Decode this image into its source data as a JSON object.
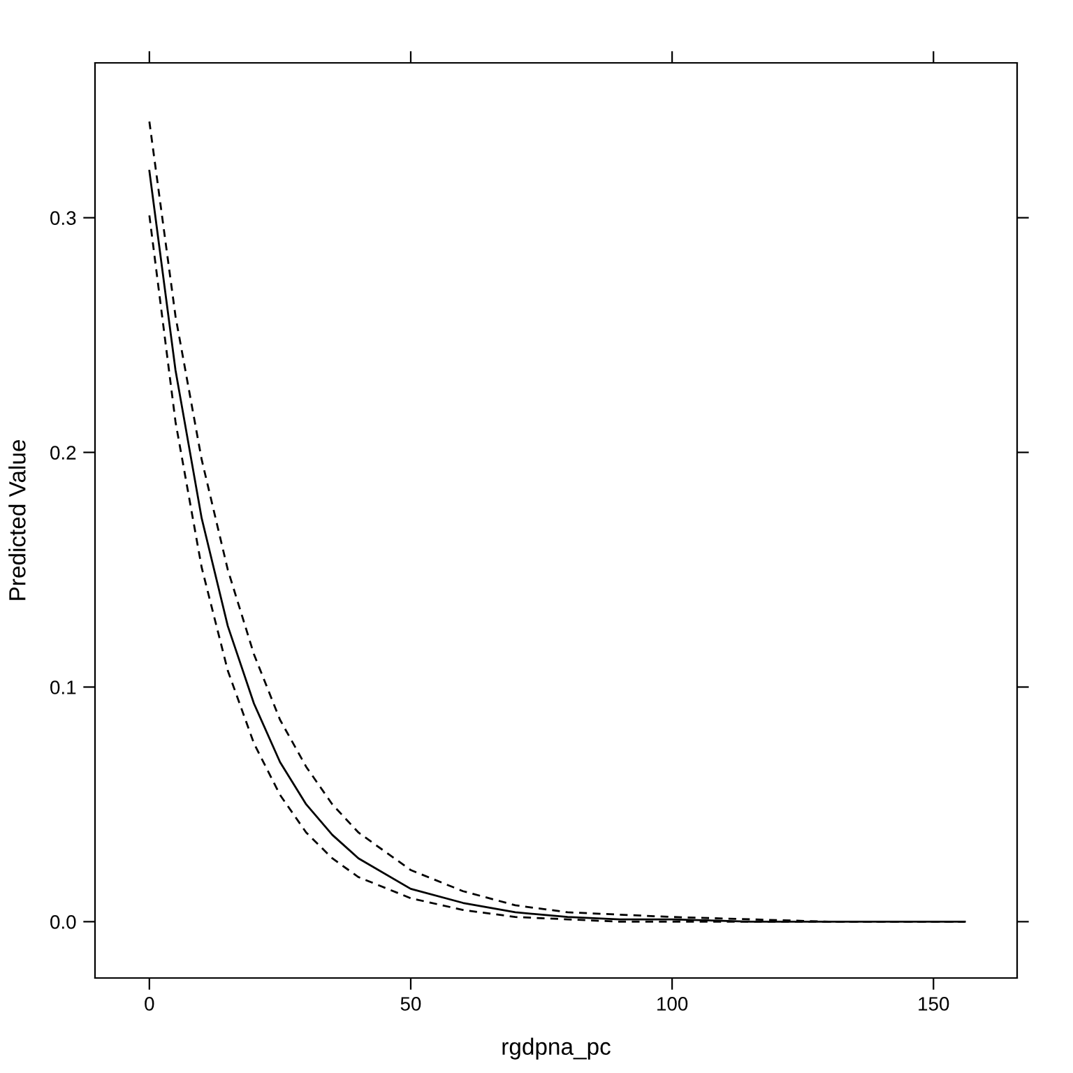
{
  "chart_data": {
    "type": "line",
    "xlabel": "rgdpna_pc",
    "ylabel": "Predicted Value",
    "x": [
      0,
      5,
      10,
      15,
      20,
      25,
      30,
      35,
      40,
      50,
      60,
      70,
      80,
      90,
      100,
      115,
      130,
      156
    ],
    "series": [
      {
        "color": "#000000",
        "line_style": "solid",
        "values": [
          0.32,
          0.235,
          0.172,
          0.126,
          0.093,
          0.068,
          0.05,
          0.037,
          0.027,
          0.014,
          0.008,
          0.004,
          0.002,
          0.001,
          0.001,
          0.0,
          0.0,
          0.0
        ]
      },
      {
        "color": "#000000",
        "line_style": "dashed",
        "values": [
          0.341,
          0.258,
          0.197,
          0.15,
          0.114,
          0.086,
          0.066,
          0.05,
          0.038,
          0.022,
          0.013,
          0.007,
          0.004,
          0.003,
          0.002,
          0.001,
          0.0,
          0.0
        ]
      },
      {
        "color": "#000000",
        "line_style": "dashed",
        "values": [
          0.301,
          0.213,
          0.151,
          0.107,
          0.076,
          0.054,
          0.038,
          0.027,
          0.019,
          0.01,
          0.005,
          0.002,
          0.001,
          0.0,
          0.0,
          0.0,
          0.0,
          0.0
        ]
      }
    ],
    "xlim": [
      -10.4,
      166
    ],
    "ylim": [
      -0.024,
      0.366
    ],
    "xticks": [
      0,
      50,
      100,
      150
    ],
    "yticks": [
      {
        "value": 0,
        "label": "0.0"
      },
      {
        "value": 0.1,
        "label": "0.1"
      },
      {
        "value": 0.2,
        "label": "0.2"
      },
      {
        "value": 0.3,
        "label": "0.3"
      }
    ],
    "grid": false,
    "legend": false,
    "marker": "none"
  }
}
